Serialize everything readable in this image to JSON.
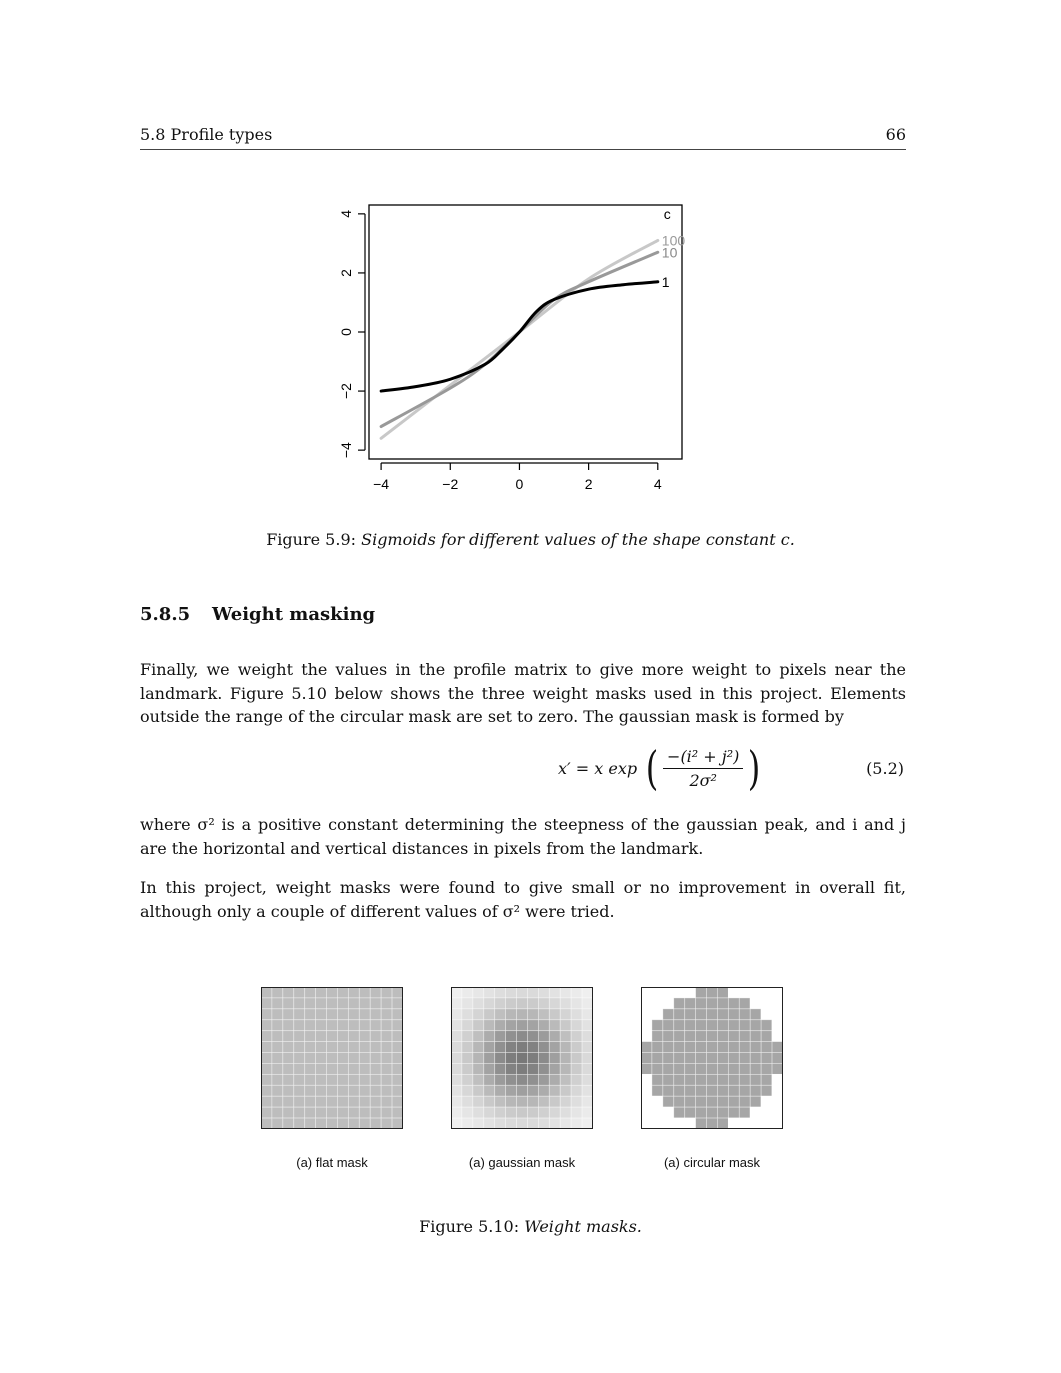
{
  "header": {
    "section": "5.8 Profile types",
    "page": "66"
  },
  "chart_data": {
    "type": "line",
    "title": "",
    "xlabel": "",
    "ylabel": "",
    "xlim": [
      -4.35,
      4.7
    ],
    "ylim": [
      -4.3,
      4.3
    ],
    "xticks": [
      "−4",
      "−2",
      "0",
      "2",
      "4"
    ],
    "yticks": [
      "−4",
      "−2",
      "0",
      "2",
      "4"
    ],
    "legend_title": "c",
    "legend_position": "right-end-of-lines",
    "series": [
      {
        "name": "100",
        "color": "#c8c8c8",
        "points": [
          [
            -4,
            -3.6
          ],
          [
            -2,
            -1.8
          ],
          [
            0,
            0
          ],
          [
            2,
            1.8
          ],
          [
            4,
            3.1
          ]
        ]
      },
      {
        "name": "10",
        "color": "#999999",
        "points": [
          [
            -4,
            -3.2
          ],
          [
            -2,
            -1.9
          ],
          [
            -1,
            -1.1
          ],
          [
            0,
            0
          ],
          [
            1,
            1.1
          ],
          [
            2,
            1.7
          ],
          [
            4,
            2.7
          ]
        ]
      },
      {
        "name": "1",
        "color": "#000000",
        "points": [
          [
            -4,
            -2.0
          ],
          [
            -3,
            -1.85
          ],
          [
            -2,
            -1.6
          ],
          [
            -1,
            -1.1
          ],
          [
            -0.5,
            -0.6
          ],
          [
            0,
            0
          ],
          [
            0.5,
            0.7
          ],
          [
            1,
            1.1
          ],
          [
            2,
            1.45
          ],
          [
            3,
            1.6
          ],
          [
            4,
            1.7
          ]
        ]
      }
    ]
  },
  "figure59": {
    "label": "Figure 5.9:",
    "text": "Sigmoids for different values of the shape constant c."
  },
  "section": {
    "number": "5.8.5",
    "title": "Weight masking"
  },
  "para1": "Finally, we weight the values in the profile matrix to give more weight to pixels near the landmark. Figure 5.10 below shows the three weight masks used in this project. Elements outside the range of the circular mask are set to zero. The gaussian mask is formed by",
  "equation": {
    "lhs": "x′ = x exp",
    "numerator": "−(i² + j²)",
    "denominator": "2σ²",
    "label": "(5.2)"
  },
  "para2": "where σ² is a positive constant determining the steepness of the gaussian peak, and i and j are the horizontal and vertical distances in pixels from the landmark.",
  "para3": "In this project, weight masks were found to give small or no improvement in overall fit, although only a couple of different values of σ² were tried.",
  "masks": [
    {
      "label": "(a) flat mask",
      "kind": "flat"
    },
    {
      "label": "(a) gaussian mask",
      "kind": "gaussian"
    },
    {
      "label": "(a) circular mask",
      "kind": "circular"
    }
  ],
  "figure510": {
    "label": "Figure 5.10:",
    "text": "Weight masks."
  }
}
